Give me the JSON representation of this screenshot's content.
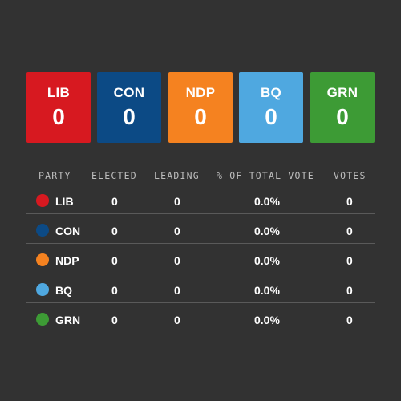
{
  "colors": {
    "background": "#323232",
    "LIB": "#d71920",
    "CON": "#0c4a85",
    "NDP": "#f58220",
    "BQ": "#4fa8e0",
    "GRN": "#3d9b35"
  },
  "cards": [
    {
      "abbr": "LIB",
      "count": "0",
      "color": "#d71920"
    },
    {
      "abbr": "CON",
      "count": "0",
      "color": "#0c4a85"
    },
    {
      "abbr": "NDP",
      "count": "0",
      "color": "#f58220"
    },
    {
      "abbr": "BQ",
      "count": "0",
      "color": "#4fa8e0"
    },
    {
      "abbr": "GRN",
      "count": "0",
      "color": "#3d9b35"
    }
  ],
  "table": {
    "headers": {
      "party": "PARTY",
      "elected": "ELECTED",
      "leading": "LEADING",
      "pct": "% OF TOTAL VOTE",
      "votes": "VOTES"
    },
    "rows": [
      {
        "party": "LIB",
        "elected": "0",
        "leading": "0",
        "pct": "0.0%",
        "votes": "0",
        "color": "#d71920"
      },
      {
        "party": "CON",
        "elected": "0",
        "leading": "0",
        "pct": "0.0%",
        "votes": "0",
        "color": "#0c4a85"
      },
      {
        "party": "NDP",
        "elected": "0",
        "leading": "0",
        "pct": "0.0%",
        "votes": "0",
        "color": "#f58220"
      },
      {
        "party": "BQ",
        "elected": "0",
        "leading": "0",
        "pct": "0.0%",
        "votes": "0",
        "color": "#4fa8e0"
      },
      {
        "party": "GRN",
        "elected": "0",
        "leading": "0",
        "pct": "0.0%",
        "votes": "0",
        "color": "#3d9b35"
      }
    ]
  }
}
